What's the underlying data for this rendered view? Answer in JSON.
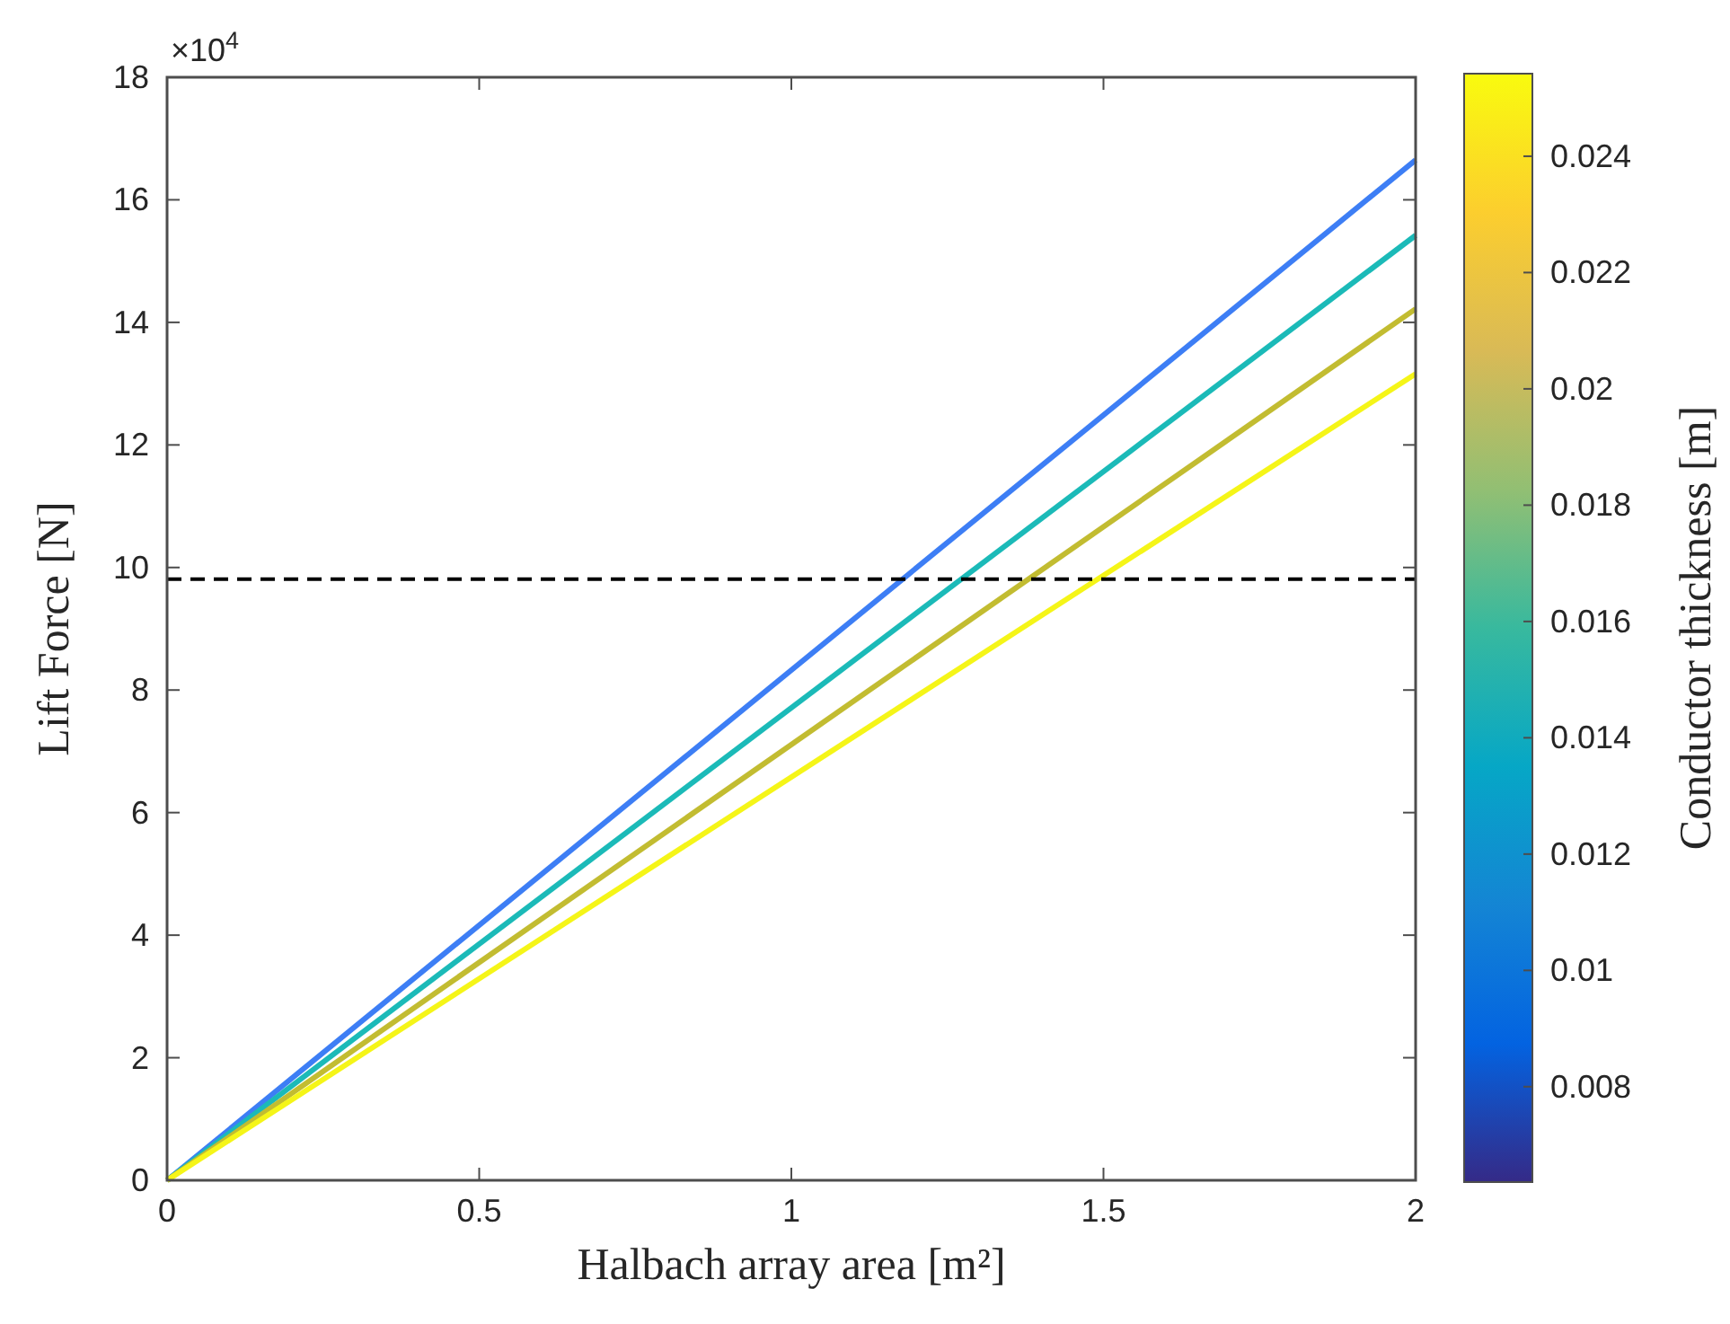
{
  "chart_data": {
    "type": "line",
    "xlabel": "Halbach array area [m²]",
    "ylabel": "Lift Force [N]",
    "clabel": "Conductor thickness [m]",
    "annotations": [
      "×10$^{4}$"
    ],
    "x": [
      0,
      2
    ],
    "series": [
      {
        "color": "#3d7ef5",
        "values": [
          0,
          16.65
        ]
      },
      {
        "color": "#1bbab8",
        "values": [
          0,
          15.42
        ]
      },
      {
        "color": "#c2bc31",
        "values": [
          0,
          14.22
        ]
      },
      {
        "color": "#f5f518",
        "values": [
          0,
          13.16
        ]
      }
    ],
    "xlim": [
      0,
      2
    ],
    "xticks": [
      0,
      0.5,
      1,
      1.5,
      2
    ],
    "ylim": [
      0,
      18
    ],
    "yticks": [
      0,
      2,
      4,
      6,
      8,
      10,
      12,
      14,
      16,
      18
    ],
    "ref_lines": [
      {
        "axis": "y",
        "value": 9.81,
        "color": "#000000",
        "line_style": "dashed"
      }
    ],
    "clim": [
      0.00636,
      0.02542
    ],
    "cticks": [
      0.008,
      0.01,
      0.012,
      0.014,
      0.016,
      0.018,
      0.02,
      0.022,
      0.024
    ],
    "marker": "none",
    "line_style": "solid"
  }
}
